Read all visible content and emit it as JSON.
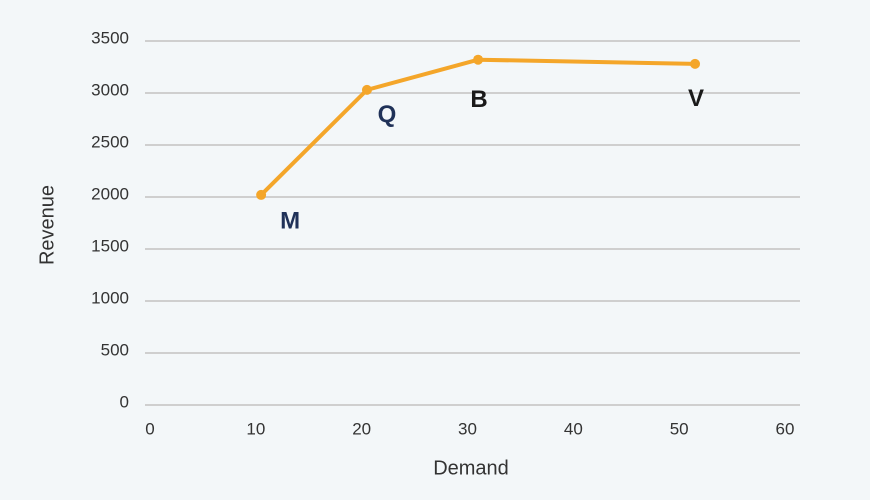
{
  "chart_data": {
    "type": "line",
    "x": [
      10.5,
      20.5,
      31,
      51.5
    ],
    "values": [
      2020,
      3030,
      3320,
      3280
    ],
    "point_labels": [
      "M",
      "Q",
      "B",
      "V"
    ],
    "point_label_colors": [
      "#1f3158",
      "#1f3158",
      "#1a1a1a",
      "#1a1a1a"
    ],
    "color": "#f4a62a",
    "x_label": "Demand",
    "y_label": "Revenue",
    "xlim": [
      0,
      60
    ],
    "xticks": [
      0,
      10,
      20,
      30,
      40,
      50,
      60
    ],
    "ylim": [
      0,
      3500
    ],
    "yticks": [
      0,
      500,
      1000,
      1500,
      2000,
      2500,
      3000,
      3500
    ],
    "grid": true
  }
}
